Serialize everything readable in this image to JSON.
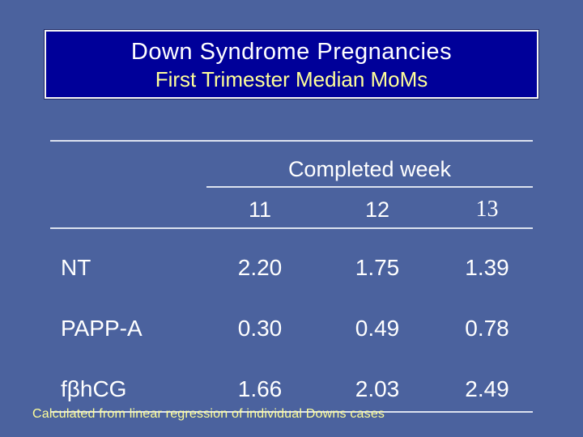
{
  "slide": {
    "background_color": "#4B629E",
    "title_box": {
      "fill_color": "#000099",
      "border_color": "#F4F4F4",
      "line1": "Down Syndrome Pregnancies",
      "line1_color": "#FFFFFF",
      "line2": "First Trimester Median MoMs",
      "line2_color": "#FFFF99"
    },
    "table": {
      "rule_color": "#DCE2EF",
      "text_color": "#FFFFFF",
      "group_header": "Completed week",
      "column_headers": [
        "11",
        "12",
        "13"
      ],
      "rows": [
        {
          "label": "NT",
          "values": [
            "2.20",
            "1.75",
            "1.39"
          ]
        },
        {
          "label": "PAPP-A",
          "values": [
            "0.30",
            "0.49",
            "0.78"
          ]
        },
        {
          "label": "fβhCG",
          "values": [
            "1.66",
            "2.03",
            "2.49"
          ]
        }
      ]
    },
    "footnote": "Calculated from linear regression of individual Downs cases",
    "footnote_color": "#FFFF99"
  },
  "chart_data": {
    "type": "table",
    "title": "Down Syndrome Pregnancies",
    "subtitle": "First Trimester Median MoMs",
    "group_header": "Completed week",
    "columns": [
      "11",
      "12",
      "13"
    ],
    "rows": [
      {
        "label": "NT",
        "values": [
          2.2,
          1.75,
          1.39
        ]
      },
      {
        "label": "PAPP-A",
        "values": [
          0.3,
          0.49,
          0.78
        ]
      },
      {
        "label": "fβhCG",
        "values": [
          1.66,
          2.03,
          2.49
        ]
      }
    ],
    "note": "Calculated from linear regression of individual Downs cases"
  }
}
